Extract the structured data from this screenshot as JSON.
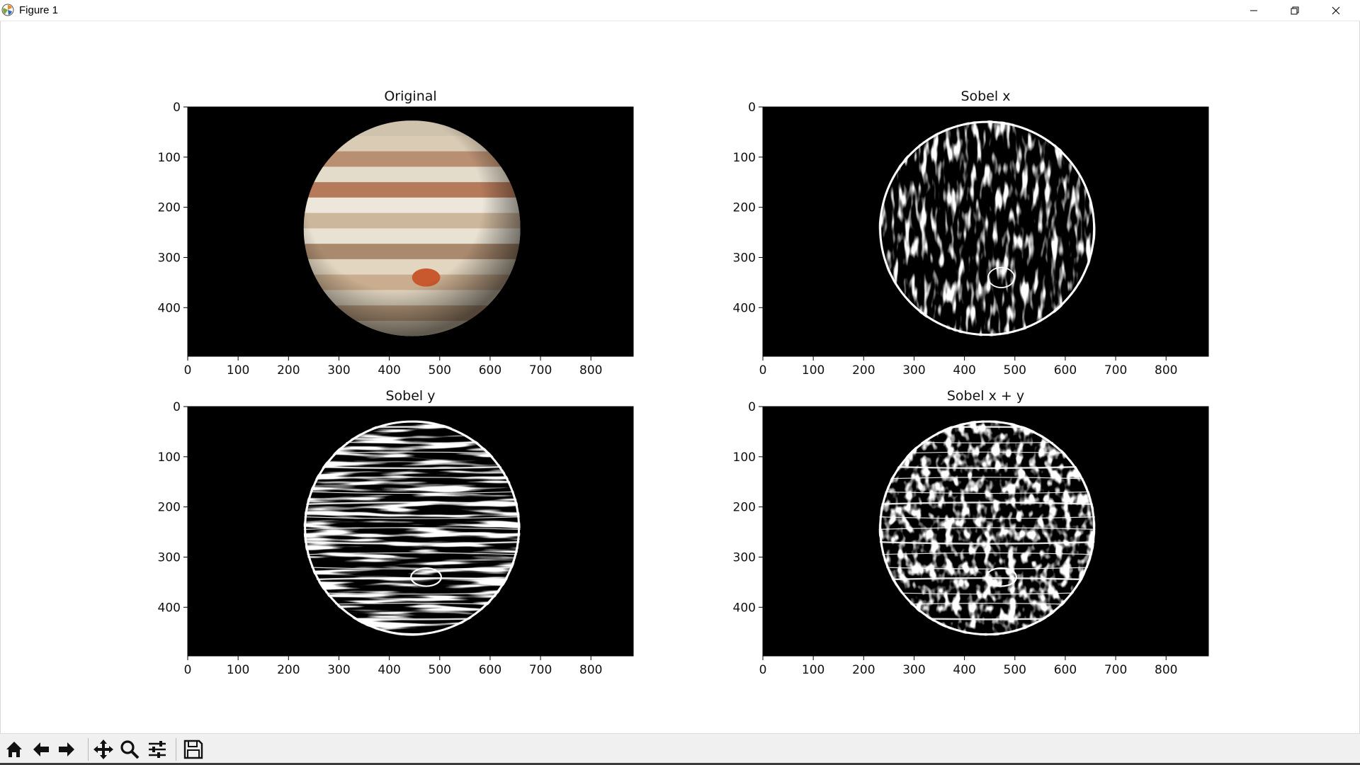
{
  "window": {
    "title": "Figure 1",
    "controls": [
      "minimize",
      "restore",
      "close"
    ]
  },
  "figure": {
    "subplots": [
      {
        "title": "Original",
        "style": "color"
      },
      {
        "title": "Sobel x",
        "style": "edge-x"
      },
      {
        "title": "Sobel y",
        "style": "edge-y"
      },
      {
        "title": "Sobel x + y",
        "style": "edge-xy"
      }
    ],
    "x_ticks": [
      "0",
      "100",
      "200",
      "300",
      "400",
      "500",
      "600",
      "700",
      "800"
    ],
    "y_ticks": [
      "0",
      "100",
      "200",
      "300",
      "400"
    ]
  },
  "chart_data": [
    {
      "type": "image",
      "title": "Original",
      "xlim": [
        0,
        884
      ],
      "ylim": [
        497,
        0
      ],
      "x_ticks": [
        0,
        100,
        200,
        300,
        400,
        500,
        600,
        700,
        800
      ],
      "y_ticks": [
        0,
        100,
        200,
        300,
        400
      ]
    },
    {
      "type": "image",
      "title": "Sobel x",
      "xlim": [
        0,
        884
      ],
      "ylim": [
        497,
        0
      ],
      "x_ticks": [
        0,
        100,
        200,
        300,
        400,
        500,
        600,
        700,
        800
      ],
      "y_ticks": [
        0,
        100,
        200,
        300,
        400
      ]
    },
    {
      "type": "image",
      "title": "Sobel y",
      "xlim": [
        0,
        884
      ],
      "ylim": [
        497,
        0
      ],
      "x_ticks": [
        0,
        100,
        200,
        300,
        400,
        500,
        600,
        700,
        800
      ],
      "y_ticks": [
        0,
        100,
        200,
        300,
        400
      ]
    },
    {
      "type": "image",
      "title": "Sobel x + y",
      "xlim": [
        0,
        884
      ],
      "ylim": [
        497,
        0
      ],
      "x_ticks": [
        0,
        100,
        200,
        300,
        400,
        500,
        600,
        700,
        800
      ],
      "y_ticks": [
        0,
        100,
        200,
        300,
        400
      ]
    }
  ],
  "toolbar": {
    "buttons": [
      "home-icon",
      "back-icon",
      "forward-icon",
      "pan-icon",
      "zoom-icon",
      "configure-subplots-icon",
      "save-icon"
    ]
  }
}
